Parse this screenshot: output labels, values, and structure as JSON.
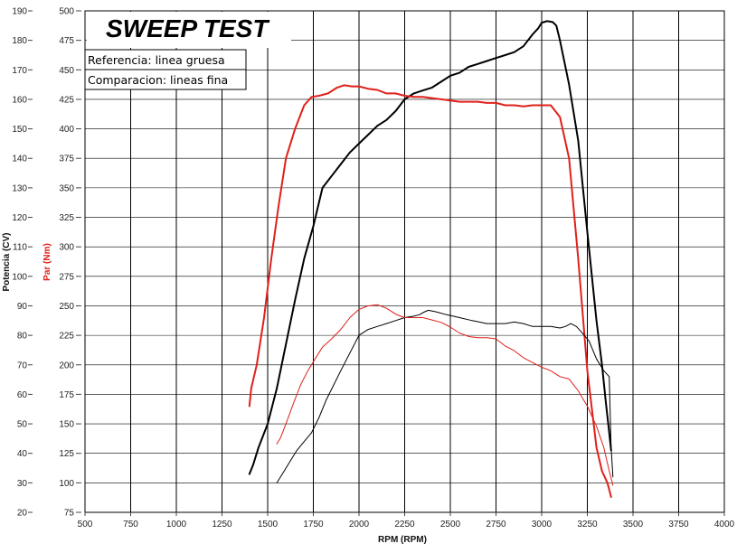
{
  "chart_data": {
    "type": "line",
    "title": "SWEEP TEST",
    "xlabel": "RPM (RPM)",
    "ylabel_left": "Potencia (CV)",
    "ylabel_right": "Par (Nm)",
    "xlim": [
      500,
      4000
    ],
    "ylim_power": [
      20,
      190
    ],
    "ylim_torque": [
      75,
      500
    ],
    "x_ticks": [
      "500",
      "750",
      "1000",
      "1250",
      "1500",
      "1750",
      "2000",
      "2250",
      "2500",
      "2750",
      "3000",
      "3250",
      "3500",
      "3750",
      "4000"
    ],
    "y_ticks_power": [
      "190",
      "180",
      "170",
      "160",
      "150",
      "140",
      "130",
      "120",
      "110",
      "100",
      "90",
      "80",
      "70",
      "60",
      "50",
      "40",
      "30",
      "20"
    ],
    "y_ticks_torque": [
      "500",
      "475",
      "450",
      "425",
      "400",
      "375",
      "350",
      "325",
      "300",
      "275",
      "250",
      "225",
      "200",
      "175",
      "150",
      "125",
      "100",
      "75"
    ],
    "legend": [
      {
        "label": "Referencia: linea gruesa"
      },
      {
        "label": "Comparacion: lineas fina"
      }
    ],
    "colors": {
      "power": "#000000",
      "torque": "#e0201b",
      "grid": "#000000"
    },
    "series": [
      {
        "name": "Potencia referencia",
        "axis": "power",
        "width": "thick",
        "x": [
          1400,
          1420,
          1450,
          1500,
          1550,
          1600,
          1650,
          1700,
          1750,
          1800,
          1850,
          1900,
          1950,
          2000,
          2050,
          2100,
          2150,
          2200,
          2250,
          2300,
          2350,
          2400,
          2450,
          2500,
          2550,
          2600,
          2650,
          2700,
          2750,
          2800,
          2850,
          2900,
          2950,
          2980,
          3000,
          3030,
          3060,
          3080,
          3100,
          3150,
          3200,
          3250,
          3300,
          3330,
          3350,
          3370,
          3380
        ],
        "y": [
          33,
          36,
          42,
          50,
          62,
          77,
          92,
          106,
          117,
          130,
          134,
          138,
          142,
          145,
          148,
          151,
          153,
          156,
          160,
          162,
          163,
          164,
          166,
          168,
          169,
          171,
          172,
          173,
          174,
          175,
          176,
          178,
          182,
          184,
          186,
          186.5,
          186.2,
          185,
          180,
          165,
          146,
          115,
          85,
          70,
          58,
          47,
          41
        ]
      },
      {
        "name": "Par referencia",
        "axis": "torque",
        "width": "thick",
        "x": [
          1400,
          1410,
          1440,
          1480,
          1520,
          1560,
          1600,
          1650,
          1700,
          1740,
          1780,
          1830,
          1880,
          1920,
          1960,
          2000,
          2050,
          2100,
          2150,
          2200,
          2250,
          2300,
          2350,
          2400,
          2450,
          2500,
          2550,
          2600,
          2650,
          2700,
          2750,
          2800,
          2850,
          2900,
          2950,
          3000,
          3050,
          3100,
          3150,
          3200,
          3250,
          3300,
          3330,
          3360,
          3380
        ],
        "y": [
          165,
          180,
          200,
          240,
          290,
          335,
          375,
          400,
          420,
          427,
          428,
          430,
          435,
          437,
          436,
          436,
          434,
          433,
          430,
          430,
          428,
          427,
          427,
          426,
          425,
          424,
          423,
          423,
          423,
          422,
          422,
          420,
          420,
          419,
          420,
          420,
          420,
          410,
          375,
          290,
          195,
          130,
          110,
          100,
          88
        ]
      },
      {
        "name": "Potencia comparacion",
        "axis": "power",
        "width": "thin",
        "x": [
          1550,
          1580,
          1620,
          1660,
          1700,
          1740,
          1780,
          1820,
          1860,
          1900,
          1950,
          2000,
          2050,
          2100,
          2150,
          2200,
          2250,
          2300,
          2330,
          2360,
          2380,
          2420,
          2480,
          2550,
          2620,
          2700,
          2800,
          2850,
          2900,
          2950,
          3000,
          3050,
          3100,
          3130,
          3160,
          3190,
          3220,
          3260,
          3300,
          3340,
          3370,
          3380,
          3390
        ],
        "y": [
          30,
          33,
          37,
          41,
          44,
          47,
          52,
          58,
          63,
          68,
          74,
          80,
          82,
          83,
          84,
          85,
          86,
          86.5,
          87,
          88,
          88.5,
          88,
          87,
          86,
          85,
          84,
          84,
          84.5,
          84,
          83,
          83,
          83,
          82.5,
          83,
          84,
          83,
          81,
          78,
          72,
          68,
          66,
          42,
          32
        ]
      },
      {
        "name": "Par comparacion",
        "axis": "torque",
        "width": "thin",
        "x": [
          1550,
          1570,
          1600,
          1640,
          1680,
          1720,
          1760,
          1800,
          1850,
          1900,
          1950,
          2000,
          2050,
          2100,
          2150,
          2200,
          2250,
          2300,
          2350,
          2400,
          2450,
          2500,
          2550,
          2600,
          2650,
          2700,
          2750,
          2800,
          2850,
          2900,
          2950,
          3000,
          3050,
          3100,
          3150,
          3200,
          3250,
          3300,
          3340,
          3370,
          3390
        ],
        "y": [
          133,
          138,
          150,
          167,
          183,
          195,
          205,
          215,
          222,
          230,
          240,
          247,
          250,
          251,
          248,
          243,
          240,
          240,
          240,
          238,
          236,
          232,
          227,
          224,
          223,
          223,
          222,
          216,
          212,
          206,
          202,
          198,
          195,
          190,
          188,
          178,
          165,
          148,
          130,
          110,
          98
        ]
      }
    ]
  }
}
